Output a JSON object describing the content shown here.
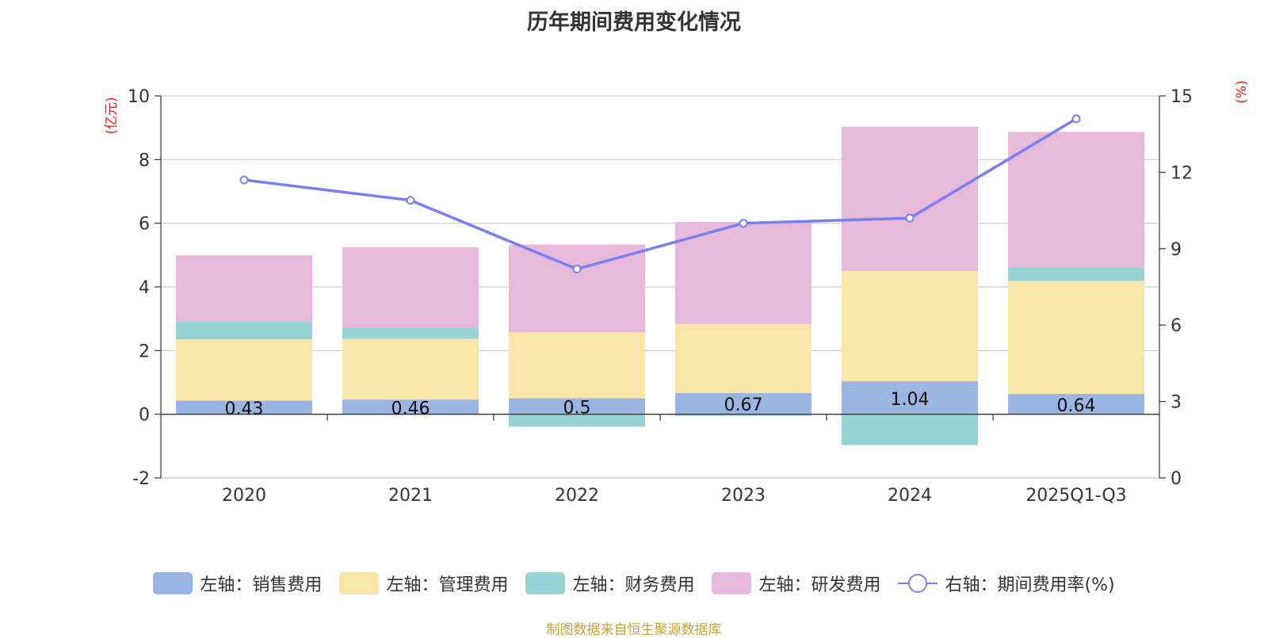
{
  "chart_data": {
    "type": "bar",
    "title": "历年期间费用变化情况",
    "categories": [
      "2020",
      "2021",
      "2022",
      "2023",
      "2024",
      "2025Q1-Q3"
    ],
    "left_axis": {
      "unit_label": "(亿元)",
      "ylim": [
        -2,
        10
      ],
      "ticks": [
        -2,
        0,
        2,
        4,
        6,
        8,
        10
      ]
    },
    "right_axis": {
      "unit_label": "(%)",
      "ylim": [
        0,
        15
      ],
      "ticks": [
        0,
        3,
        6,
        9,
        12,
        15
      ]
    },
    "series": [
      {
        "name": "左轴：销售费用",
        "kind": "bar",
        "axis": "left",
        "color": "#9bb5e2",
        "values": [
          0.43,
          0.46,
          0.5,
          0.67,
          1.04,
          0.64
        ],
        "labels": [
          "0.43",
          "0.46",
          "0.5",
          "0.67",
          "1.04",
          "0.64"
        ]
      },
      {
        "name": "左轴：管理费用",
        "kind": "bar",
        "axis": "left",
        "color": "#f8e6a8",
        "values": [
          1.92,
          1.91,
          2.08,
          2.17,
          3.46,
          3.55
        ]
      },
      {
        "name": "左轴：财务费用",
        "kind": "bar",
        "axis": "left",
        "color": "#96d3d4",
        "values": [
          0.56,
          0.35,
          -0.39,
          -0.05,
          -0.97,
          0.42
        ]
      },
      {
        "name": "左轴：研发费用",
        "kind": "bar",
        "axis": "left",
        "color": "#e6b8da",
        "values": [
          2.08,
          2.53,
          2.75,
          3.2,
          4.53,
          4.26
        ]
      },
      {
        "name": "右轴：期间费用率(%)",
        "kind": "line",
        "axis": "right",
        "color": "#7a7ff0",
        "values": [
          11.7,
          10.9,
          8.2,
          10.0,
          10.2,
          14.1
        ]
      }
    ],
    "stacked": true,
    "grid": true,
    "legend_position": "bottom"
  },
  "footer": {
    "source": "制图数据来自恒生聚源数据库"
  }
}
